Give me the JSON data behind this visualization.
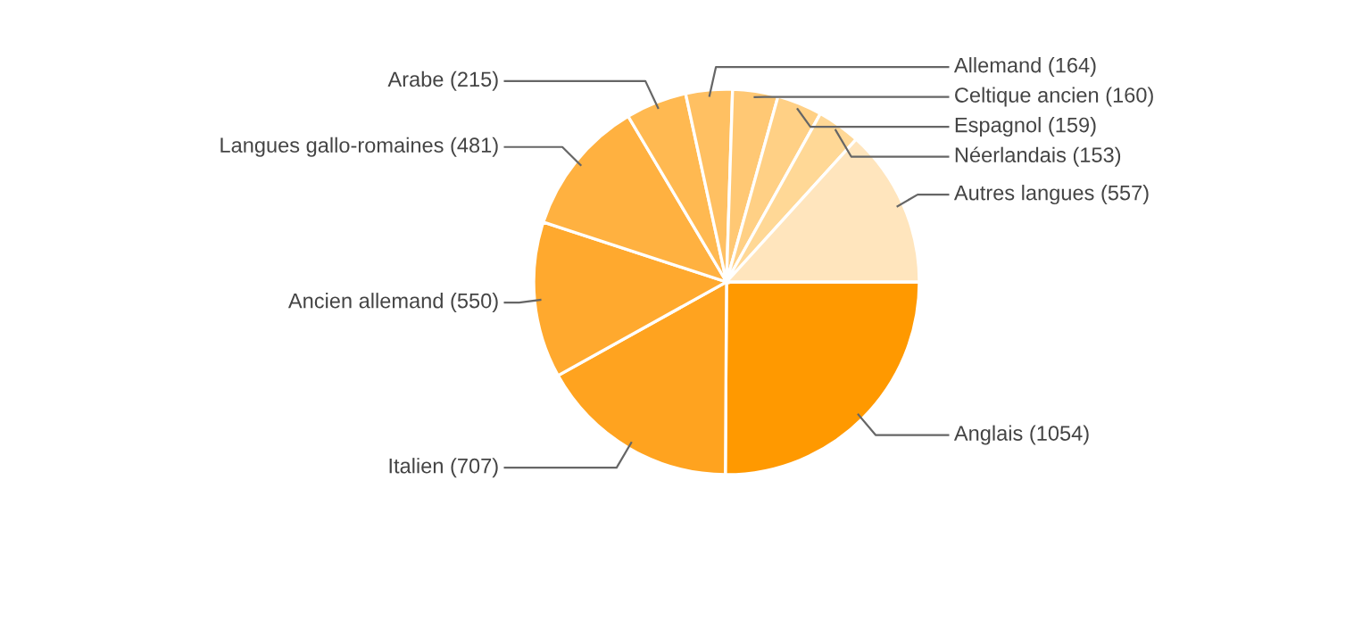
{
  "chart_data": {
    "type": "pie",
    "categories": [
      "Anglais (1054)",
      "Italien (707)",
      "Ancien allemand (550)",
      "Langues gallo-romaines (481)",
      "Arabe (215)",
      "Allemand (164)",
      "Celtique ancien (160)",
      "Espagnol (159)",
      "Néerlandais (153)",
      "Autres langues (557)"
    ],
    "values": [
      1054,
      707,
      550,
      481,
      215,
      164,
      160,
      159,
      153,
      557
    ],
    "colors": [
      "#ff9900",
      "#ffa31f",
      "#ffa92e",
      "#ffb140",
      "#ffb951",
      "#ffc062",
      "#ffc874",
      "#ffd085",
      "#ffd896",
      "#ffe5bd"
    ]
  }
}
